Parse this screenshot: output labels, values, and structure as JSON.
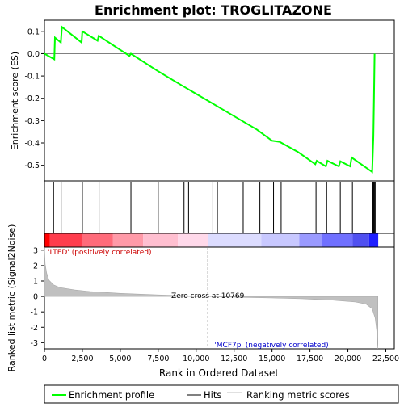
{
  "title": "Enrichment plot: TROGLITAZONE",
  "chart_data": {
    "type": "line",
    "top_panel": {
      "ylabel": "Enrichment score (ES)",
      "ylim": [
        -0.57,
        0.15
      ],
      "yticks": [
        0.1,
        0.0,
        -0.1,
        -0.2,
        -0.3,
        -0.4,
        -0.5
      ],
      "ytick_labels": [
        "0.1",
        "0.0",
        "-0.1",
        "-0.2",
        "-0.3",
        "-0.4",
        "-0.5"
      ],
      "zero_line": 0,
      "es_profile": [
        [
          0,
          0.0
        ],
        [
          650,
          -0.025
        ],
        [
          690,
          0.072
        ],
        [
          1080,
          0.05
        ],
        [
          1150,
          0.12
        ],
        [
          2450,
          0.05
        ],
        [
          2500,
          0.1
        ],
        [
          3500,
          0.058
        ],
        [
          3580,
          0.08
        ],
        [
          5600,
          -0.01
        ],
        [
          5700,
          0.0
        ],
        [
          7400,
          -0.075
        ],
        [
          9000,
          -0.14
        ],
        [
          10000,
          -0.18
        ],
        [
          12000,
          -0.26
        ],
        [
          14000,
          -0.34
        ],
        [
          15000,
          -0.39
        ],
        [
          15500,
          -0.395
        ],
        [
          16700,
          -0.44
        ],
        [
          17850,
          -0.495
        ],
        [
          17950,
          -0.48
        ],
        [
          18550,
          -0.505
        ],
        [
          18650,
          -0.48
        ],
        [
          19400,
          -0.505
        ],
        [
          19500,
          -0.482
        ],
        [
          20150,
          -0.505
        ],
        [
          20250,
          -0.465
        ],
        [
          21600,
          -0.53
        ],
        [
          21680,
          -0.37
        ],
        [
          21720,
          -0.21
        ],
        [
          21760,
          0.0
        ]
      ]
    },
    "hits": [
      600,
      1100,
      2500,
      3600,
      5700,
      7500,
      9200,
      9500,
      11100,
      11400,
      13100,
      14200,
      15100,
      15600,
      17900,
      18600,
      19500,
      20300,
      21650,
      21700,
      21750,
      21800
    ],
    "gradient_bar": {
      "left_label": "'LTED' (positively correlated)",
      "right_label": "'MCF7p' (negatively correlated)",
      "segments": [
        {
          "from": 0,
          "to": 350,
          "color": "#ff0000"
        },
        {
          "from": 350,
          "to": 2500,
          "color": "#ff3d4d"
        },
        {
          "from": 2500,
          "to": 4500,
          "color": "#ff6b7a"
        },
        {
          "from": 4500,
          "to": 6500,
          "color": "#ff9aa8"
        },
        {
          "from": 6500,
          "to": 8800,
          "color": "#ffbfd0"
        },
        {
          "from": 8800,
          "to": 10800,
          "color": "#ffd9ea"
        },
        {
          "from": 10800,
          "to": 14300,
          "color": "#dcdcff"
        },
        {
          "from": 14300,
          "to": 16800,
          "color": "#c8c8ff"
        },
        {
          "from": 16800,
          "to": 18300,
          "color": "#9a9aff"
        },
        {
          "from": 18300,
          "to": 20300,
          "color": "#7070ff"
        },
        {
          "from": 20300,
          "to": 21400,
          "color": "#5050f0"
        },
        {
          "from": 21400,
          "to": 22000,
          "color": "#1f1fff"
        }
      ]
    },
    "bottom_panel": {
      "ylabel": "Ranked list metric (Signal2Noise)",
      "ylim": [
        -3.4,
        3.2
      ],
      "yticks": [
        3,
        2,
        1,
        0,
        -1,
        -2,
        -3
      ],
      "ytick_labels": [
        "3",
        "2",
        "1",
        "0",
        "-1",
        "-2",
        "-3"
      ],
      "zero_cross_label": "Zero cross at 10769",
      "zero_cross_x": 10769,
      "metric_curve": [
        [
          0,
          3.2
        ],
        [
          50,
          2.1
        ],
        [
          150,
          1.5
        ],
        [
          300,
          1.05
        ],
        [
          600,
          0.75
        ],
        [
          1000,
          0.58
        ],
        [
          2000,
          0.42
        ],
        [
          3000,
          0.32
        ],
        [
          5000,
          0.2
        ],
        [
          7500,
          0.1
        ],
        [
          10769,
          0.0
        ],
        [
          13000,
          -0.06
        ],
        [
          15000,
          -0.1
        ],
        [
          17000,
          -0.15
        ],
        [
          19000,
          -0.24
        ],
        [
          20500,
          -0.36
        ],
        [
          21200,
          -0.5
        ],
        [
          21600,
          -0.8
        ],
        [
          21800,
          -1.4
        ],
        [
          21900,
          -2.2
        ],
        [
          21980,
          -3.4
        ]
      ]
    },
    "xlabel": "Rank in Ordered Dataset",
    "xlim": [
      0,
      22000
    ],
    "xticks": [
      0,
      2500,
      5000,
      7500,
      10000,
      12500,
      15000,
      17500,
      20000,
      22500
    ],
    "xtick_labels": [
      "0",
      "2,500",
      "5,000",
      "7,500",
      "10,000",
      "12,500",
      "15,000",
      "17,500",
      "20,000",
      "22,500"
    ],
    "legend": {
      "placement": "bottom",
      "items": [
        {
          "label": "Enrichment profile",
          "color": "#00ff00"
        },
        {
          "label": "Hits",
          "color": "#000000"
        },
        {
          "label": "Ranking metric scores",
          "color": "#c0c0c0"
        }
      ]
    }
  }
}
